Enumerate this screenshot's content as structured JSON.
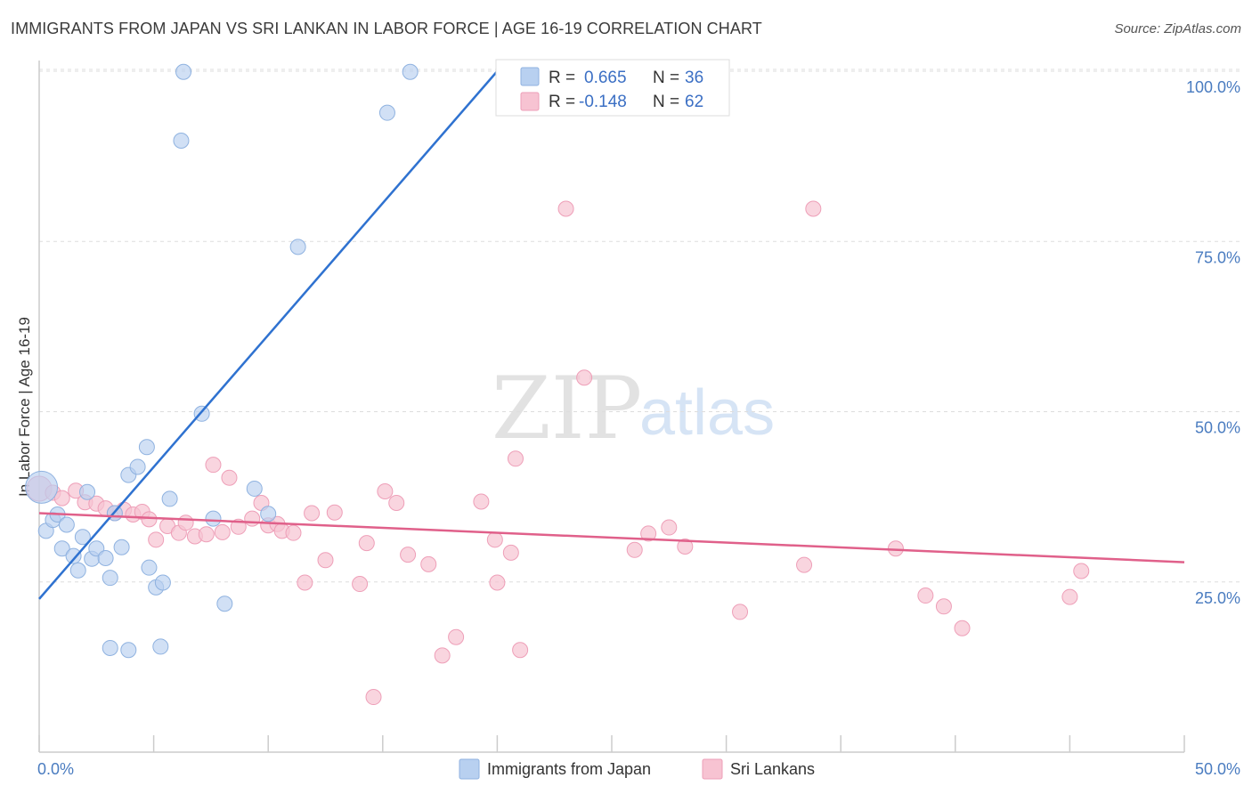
{
  "header": {
    "title": "IMMIGRANTS FROM JAPAN VS SRI LANKAN IN LABOR FORCE | AGE 16-19 CORRELATION CHART",
    "source": "Source: ZipAtlas.com"
  },
  "watermark": {
    "zip": "ZIP",
    "atlas": "atlas"
  },
  "legend": {
    "r_label": "R =",
    "n_label": "N =",
    "japan": {
      "r": "0.665",
      "n": "36"
    },
    "srilanka": {
      "r": "-0.148",
      "n": "62"
    }
  },
  "bottom_legend": {
    "japan": "Immigrants from Japan",
    "srilanka": "Sri Lankans"
  },
  "colors": {
    "japan_fill": "#b8d0f0",
    "japan_stroke": "#8fb2e0",
    "japan_line": "#2f72d0",
    "srilanka_fill": "#f7c3d2",
    "srilanka_stroke": "#ee9fb8",
    "srilanka_line": "#e0608a",
    "tick_text": "#4a7cc0",
    "grid": "#dddddd"
  },
  "chart_data": {
    "type": "scatter",
    "title": "IMMIGRANTS FROM JAPAN VS SRI LANKAN IN LABOR FORCE | AGE 16-19 CORRELATION CHART",
    "xlabel": "",
    "ylabel": "In Labor Force | Age 16-19",
    "xlim": [
      0,
      50
    ],
    "ylim": [
      0,
      102
    ],
    "x_tick_labels": [
      "0.0%",
      "50.0%"
    ],
    "y_ticks": [
      25,
      50,
      75,
      100
    ],
    "y_tick_labels": [
      "25.0%",
      "50.0%",
      "75.0%",
      "100.0%"
    ],
    "grid": true,
    "legend_position": "top-center",
    "series": [
      {
        "name": "Immigrants from Japan",
        "points": [
          [
            0.1,
            38.9
          ],
          [
            0.3,
            32.5
          ],
          [
            0.6,
            34.1
          ],
          [
            0.8,
            34.9
          ],
          [
            1.0,
            29.9
          ],
          [
            1.2,
            33.4
          ],
          [
            1.5,
            28.8
          ],
          [
            1.7,
            26.7
          ],
          [
            1.9,
            31.6
          ],
          [
            2.1,
            38.2
          ],
          [
            2.3,
            28.4
          ],
          [
            2.5,
            29.9
          ],
          [
            2.9,
            28.5
          ],
          [
            3.1,
            25.6
          ],
          [
            3.3,
            35.1
          ],
          [
            3.6,
            30.1
          ],
          [
            3.9,
            40.7
          ],
          [
            4.3,
            41.9
          ],
          [
            4.7,
            44.8
          ],
          [
            4.8,
            27.1
          ],
          [
            5.1,
            24.2
          ],
          [
            5.4,
            24.9
          ],
          [
            5.7,
            37.2
          ],
          [
            6.2,
            89.8
          ],
          [
            6.3,
            99.9
          ],
          [
            7.1,
            49.7
          ],
          [
            7.6,
            34.3
          ],
          [
            8.1,
            21.8
          ],
          [
            9.4,
            38.7
          ],
          [
            10.0,
            35.0
          ],
          [
            11.3,
            74.2
          ],
          [
            3.1,
            15.3
          ],
          [
            3.9,
            15.0
          ],
          [
            5.3,
            15.5
          ],
          [
            15.2,
            93.9
          ],
          [
            16.2,
            99.9
          ]
        ],
        "trend": {
          "x": [
            0,
            20
          ],
          "y": [
            22.5,
            100
          ]
        }
      },
      {
        "name": "Sri Lankans",
        "points": [
          [
            0.0,
            38.7
          ],
          [
            0.6,
            38.1
          ],
          [
            1.0,
            37.3
          ],
          [
            1.6,
            38.4
          ],
          [
            2.0,
            36.7
          ],
          [
            2.5,
            36.5
          ],
          [
            2.9,
            35.8
          ],
          [
            3.3,
            35.1
          ],
          [
            3.7,
            35.6
          ],
          [
            4.1,
            34.9
          ],
          [
            4.5,
            35.3
          ],
          [
            4.8,
            34.2
          ],
          [
            5.1,
            31.2
          ],
          [
            5.6,
            33.2
          ],
          [
            6.1,
            32.2
          ],
          [
            6.4,
            33.7
          ],
          [
            6.8,
            31.7
          ],
          [
            7.3,
            32.0
          ],
          [
            7.6,
            42.2
          ],
          [
            8.0,
            32.3
          ],
          [
            8.3,
            40.3
          ],
          [
            8.7,
            33.1
          ],
          [
            9.3,
            34.3
          ],
          [
            9.7,
            36.6
          ],
          [
            10.0,
            33.3
          ],
          [
            10.4,
            33.5
          ],
          [
            10.6,
            32.5
          ],
          [
            11.1,
            32.2
          ],
          [
            11.6,
            24.9
          ],
          [
            11.9,
            35.1
          ],
          [
            12.5,
            28.2
          ],
          [
            12.9,
            35.2
          ],
          [
            14.0,
            24.7
          ],
          [
            14.3,
            30.7
          ],
          [
            14.6,
            8.1
          ],
          [
            15.1,
            38.3
          ],
          [
            15.6,
            36.6
          ],
          [
            16.1,
            29.0
          ],
          [
            17.0,
            27.6
          ],
          [
            17.6,
            14.2
          ],
          [
            18.2,
            16.9
          ],
          [
            19.3,
            36.8
          ],
          [
            19.9,
            31.2
          ],
          [
            20.0,
            24.9
          ],
          [
            20.6,
            29.3
          ],
          [
            20.8,
            43.1
          ],
          [
            21.0,
            15.0
          ],
          [
            23.0,
            79.8
          ],
          [
            23.8,
            55.0
          ],
          [
            26.0,
            29.7
          ],
          [
            26.6,
            32.1
          ],
          [
            27.5,
            33.0
          ],
          [
            28.2,
            30.2
          ],
          [
            30.6,
            20.6
          ],
          [
            33.4,
            27.5
          ],
          [
            33.8,
            79.8
          ],
          [
            37.4,
            29.9
          ],
          [
            38.7,
            23.0
          ],
          [
            39.5,
            21.4
          ],
          [
            40.3,
            18.2
          ],
          [
            45.0,
            22.8
          ],
          [
            45.5,
            26.6
          ]
        ],
        "trend": {
          "x": [
            0,
            50
          ],
          "y": [
            35.1,
            27.9
          ]
        }
      }
    ]
  }
}
